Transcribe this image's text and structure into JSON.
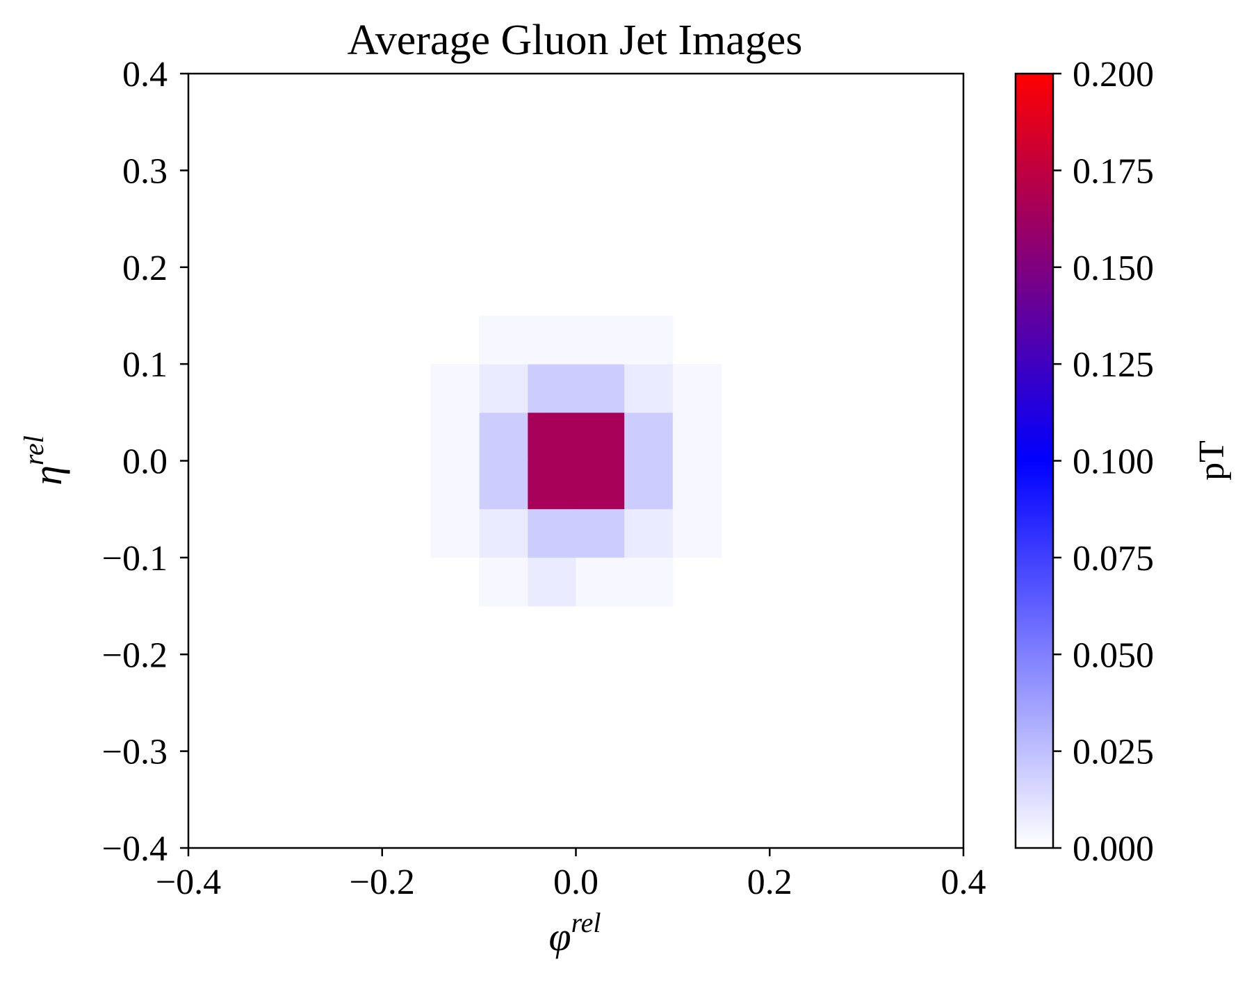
{
  "chart_data": {
    "type": "heatmap",
    "title": "Average Gluon Jet Images",
    "xlabel": {
      "base": "φ",
      "sup": "rel"
    },
    "ylabel": {
      "base": "η",
      "sup": "rel"
    },
    "xlim": [
      -0.4,
      0.4
    ],
    "ylim": [
      -0.4,
      0.4
    ],
    "xticks": [
      "−0.4",
      "−0.2",
      "0.0",
      "0.2",
      "0.4"
    ],
    "xtick_values": [
      -0.4,
      -0.2,
      0.0,
      0.2,
      0.4
    ],
    "yticks": [
      "−0.4",
      "−0.3",
      "−0.2",
      "−0.1",
      "0.0",
      "0.1",
      "0.2",
      "0.3",
      "0.4"
    ],
    "ytick_values": [
      -0.4,
      -0.3,
      -0.2,
      -0.1,
      0.0,
      0.1,
      0.2,
      0.3,
      0.4
    ],
    "bin_width": 0.05,
    "cells": [
      {
        "x0": -0.05,
        "y0": -0.05,
        "value": 0.165
      },
      {
        "x0": 0.0,
        "y0": -0.05,
        "value": 0.165
      },
      {
        "x0": -0.05,
        "y0": 0.0,
        "value": 0.165
      },
      {
        "x0": 0.0,
        "y0": 0.0,
        "value": 0.165
      },
      {
        "x0": -0.1,
        "y0": -0.05,
        "value": 0.02
      },
      {
        "x0": -0.1,
        "y0": 0.0,
        "value": 0.02
      },
      {
        "x0": 0.05,
        "y0": -0.05,
        "value": 0.02
      },
      {
        "x0": 0.05,
        "y0": 0.0,
        "value": 0.02
      },
      {
        "x0": -0.05,
        "y0": 0.05,
        "value": 0.02
      },
      {
        "x0": 0.0,
        "y0": 0.05,
        "value": 0.02
      },
      {
        "x0": -0.05,
        "y0": -0.1,
        "value": 0.02
      },
      {
        "x0": 0.0,
        "y0": -0.1,
        "value": 0.02
      },
      {
        "x0": -0.1,
        "y0": 0.05,
        "value": 0.008
      },
      {
        "x0": 0.05,
        "y0": 0.05,
        "value": 0.008
      },
      {
        "x0": -0.1,
        "y0": -0.1,
        "value": 0.008
      },
      {
        "x0": 0.05,
        "y0": -0.1,
        "value": 0.008
      },
      {
        "x0": -0.05,
        "y0": -0.15,
        "value": 0.008
      },
      {
        "x0": -0.15,
        "y0": 0.05,
        "value": 0.003
      },
      {
        "x0": -0.15,
        "y0": 0.0,
        "value": 0.003
      },
      {
        "x0": -0.15,
        "y0": -0.05,
        "value": 0.003
      },
      {
        "x0": -0.15,
        "y0": -0.1,
        "value": 0.003
      },
      {
        "x0": 0.1,
        "y0": 0.05,
        "value": 0.003
      },
      {
        "x0": 0.1,
        "y0": 0.0,
        "value": 0.003
      },
      {
        "x0": 0.1,
        "y0": -0.05,
        "value": 0.003
      },
      {
        "x0": 0.1,
        "y0": -0.1,
        "value": 0.003
      },
      {
        "x0": -0.1,
        "y0": 0.1,
        "value": 0.003
      },
      {
        "x0": -0.05,
        "y0": 0.1,
        "value": 0.003
      },
      {
        "x0": 0.0,
        "y0": 0.1,
        "value": 0.003
      },
      {
        "x0": 0.05,
        "y0": 0.1,
        "value": 0.003
      },
      {
        "x0": -0.1,
        "y0": -0.15,
        "value": 0.003
      },
      {
        "x0": 0.0,
        "y0": -0.15,
        "value": 0.003
      },
      {
        "x0": 0.05,
        "y0": -0.15,
        "value": 0.003
      }
    ],
    "colorbar": {
      "label": "pT",
      "range": [
        0.0,
        0.2
      ],
      "ticks": [
        "0.000",
        "0.025",
        "0.050",
        "0.075",
        "0.100",
        "0.125",
        "0.150",
        "0.175",
        "0.200"
      ],
      "tick_values": [
        0.0,
        0.025,
        0.05,
        0.075,
        0.1,
        0.125,
        0.15,
        0.175,
        0.2
      ],
      "colormap": [
        "#ffffff",
        "#0000ff",
        "#ff0000"
      ]
    }
  }
}
